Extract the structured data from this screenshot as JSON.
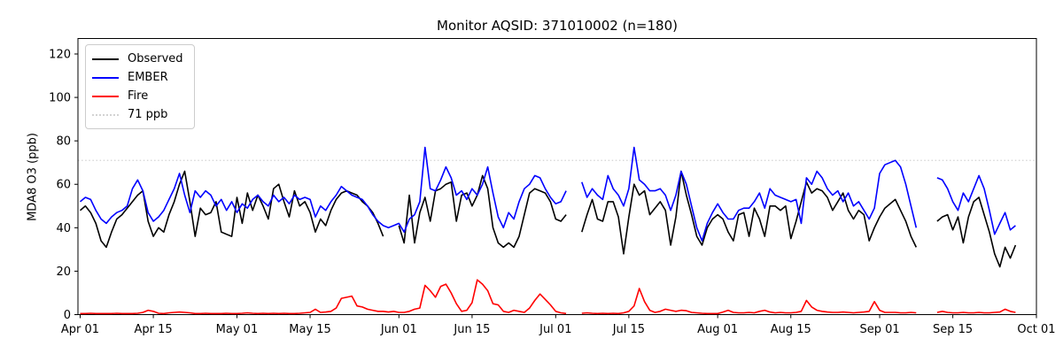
{
  "chart_data": {
    "type": "line",
    "title": "Monitor AQSID: 371010002 (n=180)",
    "ylabel": "MDA8 O3 (ppb)",
    "xlabel": "",
    "n_points": 180,
    "grid": false,
    "legend_position": "upper left",
    "ylim": [
      0,
      127
    ],
    "yticks": [
      0,
      20,
      40,
      60,
      80,
      100,
      120
    ],
    "x_range_days": 183,
    "x_ticks": [
      {
        "label": "Apr 01",
        "day": 0
      },
      {
        "label": "Apr 15",
        "day": 14
      },
      {
        "label": "May 01",
        "day": 30
      },
      {
        "label": "May 15",
        "day": 44
      },
      {
        "label": "Jun 01",
        "day": 61
      },
      {
        "label": "Jun 15",
        "day": 75
      },
      {
        "label": "Jul 01",
        "day": 91
      },
      {
        "label": "Jul 15",
        "day": 105
      },
      {
        "label": "Aug 01",
        "day": 122
      },
      {
        "label": "Aug 15",
        "day": 136
      },
      {
        "label": "Sep 01",
        "day": 153
      },
      {
        "label": "Sep 15",
        "day": 167
      },
      {
        "label": "Oct 01",
        "day": 183
      }
    ],
    "threshold": {
      "label": "71 ppb",
      "value": 71,
      "color": "#d3d3d3",
      "style": "dotted"
    },
    "legend": [
      {
        "label": "Observed",
        "color": "#000000",
        "style": "solid"
      },
      {
        "label": "EMBER",
        "color": "#0000ff",
        "style": "solid"
      },
      {
        "label": "Fire",
        "color": "#ff0000",
        "style": "solid"
      },
      {
        "label": "71 ppb",
        "color": "#d3d3d3",
        "style": "dotted"
      }
    ],
    "series": [
      {
        "name": "Observed",
        "color": "#000000",
        "values": [
          48,
          50,
          47,
          42,
          34,
          31,
          38,
          44,
          46,
          49,
          52,
          55,
          57,
          43,
          36,
          40,
          38,
          46,
          52,
          60,
          66,
          52,
          36,
          49,
          46,
          47,
          52,
          38,
          37,
          36,
          54,
          42,
          56,
          48,
          55,
          50,
          44,
          58,
          60,
          52,
          45,
          57,
          50,
          52,
          47,
          38,
          44,
          41,
          48,
          53,
          56,
          57,
          56,
          55,
          52,
          50,
          47,
          42,
          36,
          null,
          null,
          41,
          33,
          55,
          33,
          47,
          54,
          43,
          57,
          58,
          60,
          61,
          43,
          55,
          56,
          50,
          55,
          64,
          58,
          40,
          33,
          31,
          33,
          31,
          36,
          46,
          56,
          58,
          57,
          56,
          52,
          44,
          43,
          46,
          null,
          null,
          38,
          46,
          53,
          44,
          43,
          52,
          52,
          45,
          28,
          45,
          60,
          55,
          57,
          46,
          49,
          52,
          48,
          32,
          45,
          66,
          55,
          46,
          36,
          32,
          40,
          44,
          46,
          44,
          38,
          34,
          46,
          47,
          36,
          49,
          44,
          36,
          50,
          50,
          48,
          50,
          35,
          43,
          52,
          61,
          56,
          58,
          57,
          54,
          48,
          52,
          56,
          48,
          44,
          48,
          46,
          34,
          40,
          45,
          49,
          51,
          53,
          48,
          43,
          36,
          31,
          null,
          null,
          null,
          43,
          45,
          46,
          39,
          45,
          33,
          45,
          52,
          54,
          46,
          38,
          28,
          22,
          31,
          26,
          32
        ]
      },
      {
        "name": "EMBER",
        "color": "#0000ff",
        "values": [
          52,
          54,
          53,
          48,
          44,
          42,
          45,
          47,
          48,
          50,
          58,
          62,
          57,
          47,
          43,
          45,
          48,
          53,
          58,
          65,
          55,
          47,
          57,
          54,
          57,
          55,
          50,
          53,
          48,
          52,
          47,
          51,
          49,
          53,
          55,
          52,
          50,
          55,
          52,
          54,
          51,
          55,
          53,
          54,
          53,
          45,
          50,
          48,
          52,
          55,
          59,
          57,
          55,
          54,
          53,
          50,
          46,
          43,
          41,
          40,
          41,
          42,
          38,
          44,
          46,
          52,
          77,
          58,
          57,
          62,
          68,
          63,
          55,
          57,
          53,
          58,
          55,
          60,
          68,
          56,
          45,
          40,
          47,
          44,
          52,
          58,
          60,
          64,
          63,
          58,
          54,
          51,
          52,
          57,
          null,
          null,
          61,
          54,
          58,
          55,
          53,
          64,
          58,
          55,
          50,
          58,
          77,
          62,
          60,
          57,
          57,
          58,
          55,
          48,
          55,
          66,
          60,
          50,
          40,
          34,
          42,
          47,
          51,
          47,
          44,
          44,
          48,
          49,
          49,
          52,
          56,
          49,
          58,
          55,
          54,
          53,
          52,
          53,
          42,
          63,
          60,
          66,
          63,
          58,
          55,
          57,
          52,
          56,
          50,
          52,
          48,
          44,
          49,
          65,
          69,
          70,
          71,
          68,
          60,
          50,
          40,
          null,
          null,
          null,
          63,
          62,
          58,
          52,
          48,
          56,
          52,
          58,
          64,
          58,
          48,
          37,
          42,
          47,
          39,
          41
        ]
      },
      {
        "name": "Fire",
        "color": "#ff0000",
        "values": [
          0.5,
          0.5,
          0.6,
          0.5,
          0.5,
          0.5,
          0.5,
          0.6,
          0.5,
          0.5,
          0.5,
          0.6,
          1.0,
          2.0,
          1.5,
          0.6,
          0.5,
          0.8,
          1.0,
          1.2,
          1.0,
          0.8,
          0.5,
          0.5,
          0.6,
          0.5,
          0.5,
          0.5,
          0.6,
          0.5,
          0.5,
          0.6,
          0.8,
          0.6,
          0.5,
          0.6,
          0.5,
          0.6,
          0.5,
          0.6,
          0.5,
          0.5,
          0.6,
          0.8,
          1.0,
          2.5,
          1.0,
          1.2,
          1.5,
          3.0,
          7.5,
          8.0,
          8.5,
          4.0,
          3.5,
          2.5,
          2.0,
          1.5,
          1.5,
          1.2,
          1.5,
          1.0,
          1.0,
          1.5,
          2.5,
          3.0,
          13.5,
          11.0,
          8.0,
          13.0,
          14.0,
          10.0,
          5.0,
          1.5,
          2.0,
          5.5,
          16.0,
          14.0,
          11.0,
          5.0,
          4.5,
          1.5,
          1.0,
          2.0,
          1.5,
          1.0,
          3.0,
          6.5,
          9.5,
          7.0,
          4.5,
          1.5,
          0.8,
          0.5,
          null,
          null,
          0.6,
          0.8,
          0.6,
          0.5,
          0.6,
          0.5,
          0.6,
          0.5,
          0.8,
          1.5,
          4.0,
          12.0,
          6.0,
          2.0,
          1.0,
          1.5,
          2.5,
          2.0,
          1.5,
          2.0,
          1.8,
          1.0,
          0.8,
          0.6,
          0.5,
          0.5,
          0.5,
          1.2,
          2.0,
          1.0,
          0.8,
          0.8,
          1.0,
          0.8,
          1.5,
          2.0,
          1.2,
          0.8,
          1.0,
          0.8,
          0.8,
          1.0,
          1.5,
          6.5,
          3.5,
          2.0,
          1.5,
          1.2,
          1.0,
          1.0,
          1.2,
          1.0,
          0.8,
          1.0,
          1.2,
          1.5,
          6.0,
          2.0,
          1.0,
          1.0,
          1.0,
          0.8,
          0.8,
          1.0,
          0.8,
          null,
          null,
          null,
          1.0,
          1.5,
          1.0,
          0.8,
          0.8,
          1.0,
          0.8,
          0.8,
          1.0,
          0.8,
          0.8,
          1.0,
          1.2,
          2.5,
          1.5,
          1.0
        ]
      }
    ]
  }
}
